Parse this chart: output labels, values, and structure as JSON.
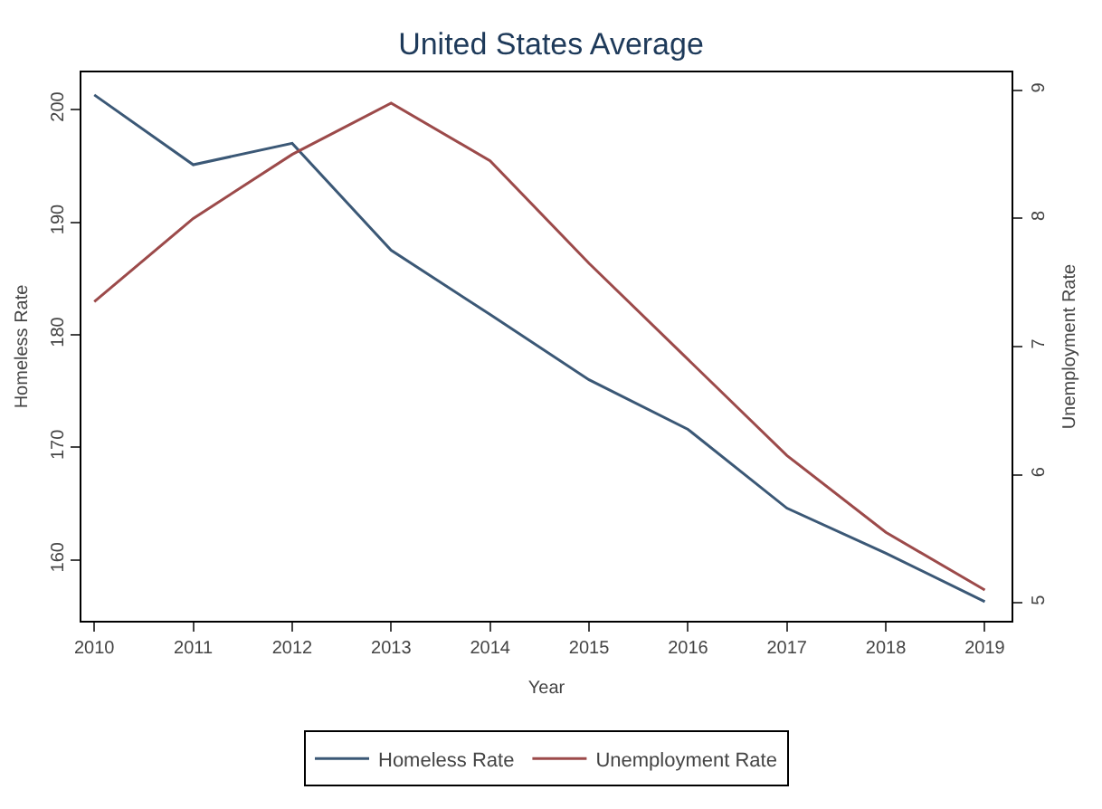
{
  "chart_data": {
    "type": "line",
    "title": "United States Average",
    "xlabel": "Year",
    "ylabel": "Homeless Rate",
    "y2label": "Unemployment Rate",
    "x": [
      2010,
      2011,
      2012,
      2013,
      2014,
      2015,
      2016,
      2017,
      2018,
      2019
    ],
    "series": [
      {
        "name": "Homeless Rate",
        "color": "#3b5876",
        "values": [
          201.3,
          195.1,
          197,
          187.5,
          181.8,
          176,
          171.6,
          164.6,
          160.6,
          156.3
        ]
      },
      {
        "name": "Unemployment Rate",
        "color": "#9c4a4a",
        "axis": "y2",
        "values": [
          7.35,
          8.0,
          8.5,
          8.9,
          8.45,
          7.65,
          6.9,
          6.15,
          5.55,
          5.1
        ]
      }
    ],
    "xlim": [
      2009.87,
      2019.27
    ],
    "xticks": [
      2010,
      2011,
      2012,
      2013,
      2014,
      2015,
      2016,
      2017,
      2018,
      2019
    ],
    "ylim": [
      154.6,
      203.3
    ],
    "yticks": [
      160,
      170,
      180,
      190,
      200
    ],
    "y2lim": [
      4.86,
      9.14
    ],
    "y2ticks": [
      5,
      6,
      7,
      8,
      9
    ],
    "grid": false,
    "legend": "bottom",
    "marker": "none",
    "line_style": "solid"
  }
}
